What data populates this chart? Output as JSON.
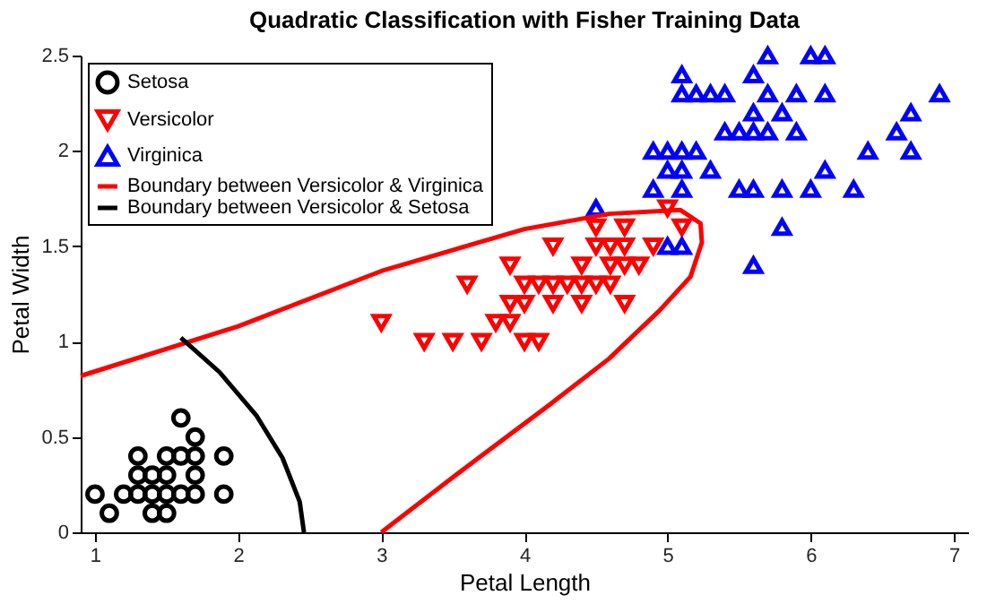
{
  "chart_data": {
    "type": "scatter",
    "title": "Quadratic Classification with Fisher Training Data",
    "xlabel": "Petal Length",
    "ylabel": "Petal Width",
    "xlim": [
      0.9,
      7.1
    ],
    "xticks": [
      1,
      2,
      3,
      4,
      5,
      6,
      7
    ],
    "ylim": [
      0,
      2.5
    ],
    "yticks": [
      0,
      0.5,
      1,
      1.5,
      2,
      2.5
    ],
    "grid": false,
    "legend": "top left",
    "series": [
      {
        "name": "Setosa",
        "type": "scatter",
        "marker": "circle",
        "color": "#000000",
        "x": [
          1.0,
          1.1,
          1.2,
          1.3,
          1.4,
          1.5,
          1.6,
          1.7,
          1.9,
          1.4,
          1.5,
          1.3,
          1.4,
          1.5,
          1.7,
          1.3,
          1.5,
          1.6,
          1.7,
          1.9,
          1.7,
          1.6
        ],
        "values": [
          0.2,
          0.1,
          0.2,
          0.2,
          0.2,
          0.2,
          0.2,
          0.2,
          0.2,
          0.1,
          0.1,
          0.3,
          0.3,
          0.3,
          0.3,
          0.4,
          0.4,
          0.4,
          0.4,
          0.4,
          0.5,
          0.6
        ]
      },
      {
        "name": "Versicolor",
        "type": "scatter",
        "marker": "triangle-down",
        "color": "#ff0000",
        "x": [
          3.0,
          3.3,
          3.5,
          3.7,
          4.0,
          4.1,
          3.8,
          3.9,
          3.9,
          4.0,
          4.2,
          4.4,
          4.7,
          3.6,
          4.0,
          4.1,
          4.2,
          4.3,
          4.4,
          4.5,
          4.6,
          3.9,
          4.4,
          4.6,
          4.7,
          4.8,
          4.2,
          4.5,
          4.6,
          4.7,
          4.9,
          4.5,
          4.7,
          5.1,
          5.0
        ],
        "values": [
          1.1,
          1.0,
          1.0,
          1.0,
          1.0,
          1.0,
          1.1,
          1.1,
          1.2,
          1.2,
          1.2,
          1.2,
          1.2,
          1.3,
          1.3,
          1.3,
          1.3,
          1.3,
          1.3,
          1.3,
          1.3,
          1.4,
          1.4,
          1.4,
          1.4,
          1.4,
          1.5,
          1.5,
          1.5,
          1.5,
          1.5,
          1.6,
          1.6,
          1.6,
          1.7
        ]
      },
      {
        "name": "Virginica",
        "type": "scatter",
        "marker": "triangle",
        "color": "#0000ff",
        "x": [
          5.7,
          6.0,
          6.1,
          5.1,
          5.6,
          5.1,
          5.2,
          5.3,
          5.4,
          5.7,
          5.9,
          6.1,
          6.9,
          5.6,
          5.8,
          6.7,
          5.4,
          5.5,
          5.6,
          5.7,
          5.9,
          6.6,
          4.9,
          5.0,
          5.1,
          5.2,
          6.4,
          6.7,
          5.0,
          5.1,
          5.3,
          6.1,
          4.9,
          5.1,
          5.5,
          5.6,
          5.8,
          6.0,
          6.3,
          5.8,
          5.6,
          4.5,
          5.0,
          5.1
        ],
        "values": [
          2.5,
          2.5,
          2.5,
          2.4,
          2.4,
          2.3,
          2.3,
          2.3,
          2.3,
          2.3,
          2.3,
          2.3,
          2.3,
          2.2,
          2.2,
          2.2,
          2.1,
          2.1,
          2.1,
          2.1,
          2.1,
          2.1,
          2.0,
          2.0,
          2.0,
          2.0,
          2.0,
          2.0,
          1.9,
          1.9,
          1.9,
          1.9,
          1.8,
          1.8,
          1.8,
          1.8,
          1.8,
          1.8,
          1.8,
          1.6,
          1.4,
          1.7,
          1.5,
          1.5
        ]
      },
      {
        "name": "Boundary between Versicolor & Virginica",
        "type": "line",
        "line_style": "solid",
        "color": "#ff0000",
        "x": [
          0.9,
          2.0,
          3.0,
          4.0,
          4.59,
          5.09,
          5.23,
          5.24,
          5.16,
          4.94,
          4.59,
          4.16,
          3.59,
          3.0
        ],
        "values": [
          0.82,
          1.08,
          1.37,
          1.59,
          1.67,
          1.69,
          1.62,
          1.52,
          1.34,
          1.16,
          0.91,
          0.66,
          0.34,
          0.0
        ]
      },
      {
        "name": "Boundary between Versicolor & Setosa",
        "type": "line",
        "line_style": "solid",
        "color": "#000000",
        "x": [
          1.6,
          1.87,
          2.13,
          2.31,
          2.43,
          2.46
        ],
        "values": [
          1.02,
          0.84,
          0.61,
          0.39,
          0.16,
          0.0
        ]
      }
    ]
  }
}
